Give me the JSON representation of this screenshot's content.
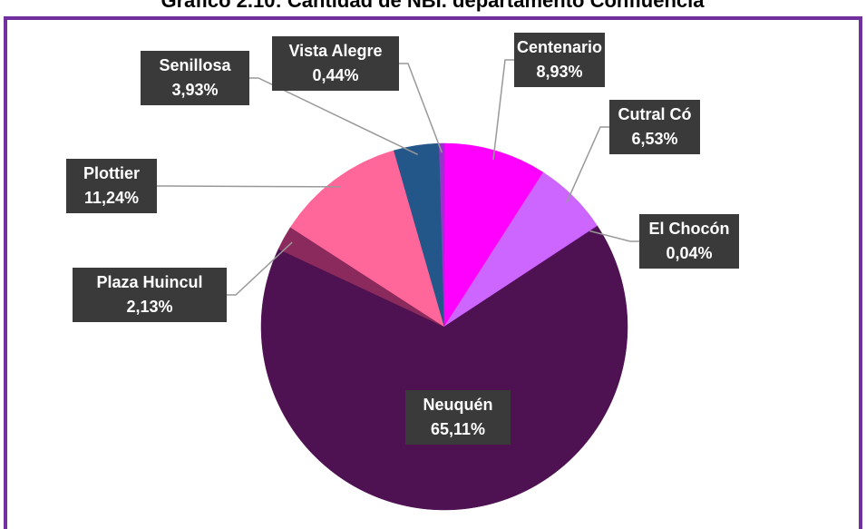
{
  "chart_data": {
    "type": "pie",
    "title": "Gráfico 2.10: Cantidad de NBI. departamento Confluencia",
    "categories": [
      "Centenario",
      "Cutral Có",
      "El Chocón",
      "Neuquén",
      "Plaza Huincul",
      "Plottier",
      "Senillosa",
      "Vista Alegre"
    ],
    "values": [
      8.93,
      6.53,
      0.04,
      65.11,
      2.13,
      11.24,
      3.93,
      0.44
    ],
    "value_labels": [
      "8,93%",
      "6,53%",
      "0,04%",
      "65,11%",
      "2,13%",
      "11,24%",
      "3,93%",
      "0,44%"
    ],
    "colors": [
      "#ff00ff",
      "#cc66ff",
      "#9933cc",
      "#4e1152",
      "#8b2a5c",
      "#ff6699",
      "#23578a",
      "#9933cc"
    ]
  }
}
